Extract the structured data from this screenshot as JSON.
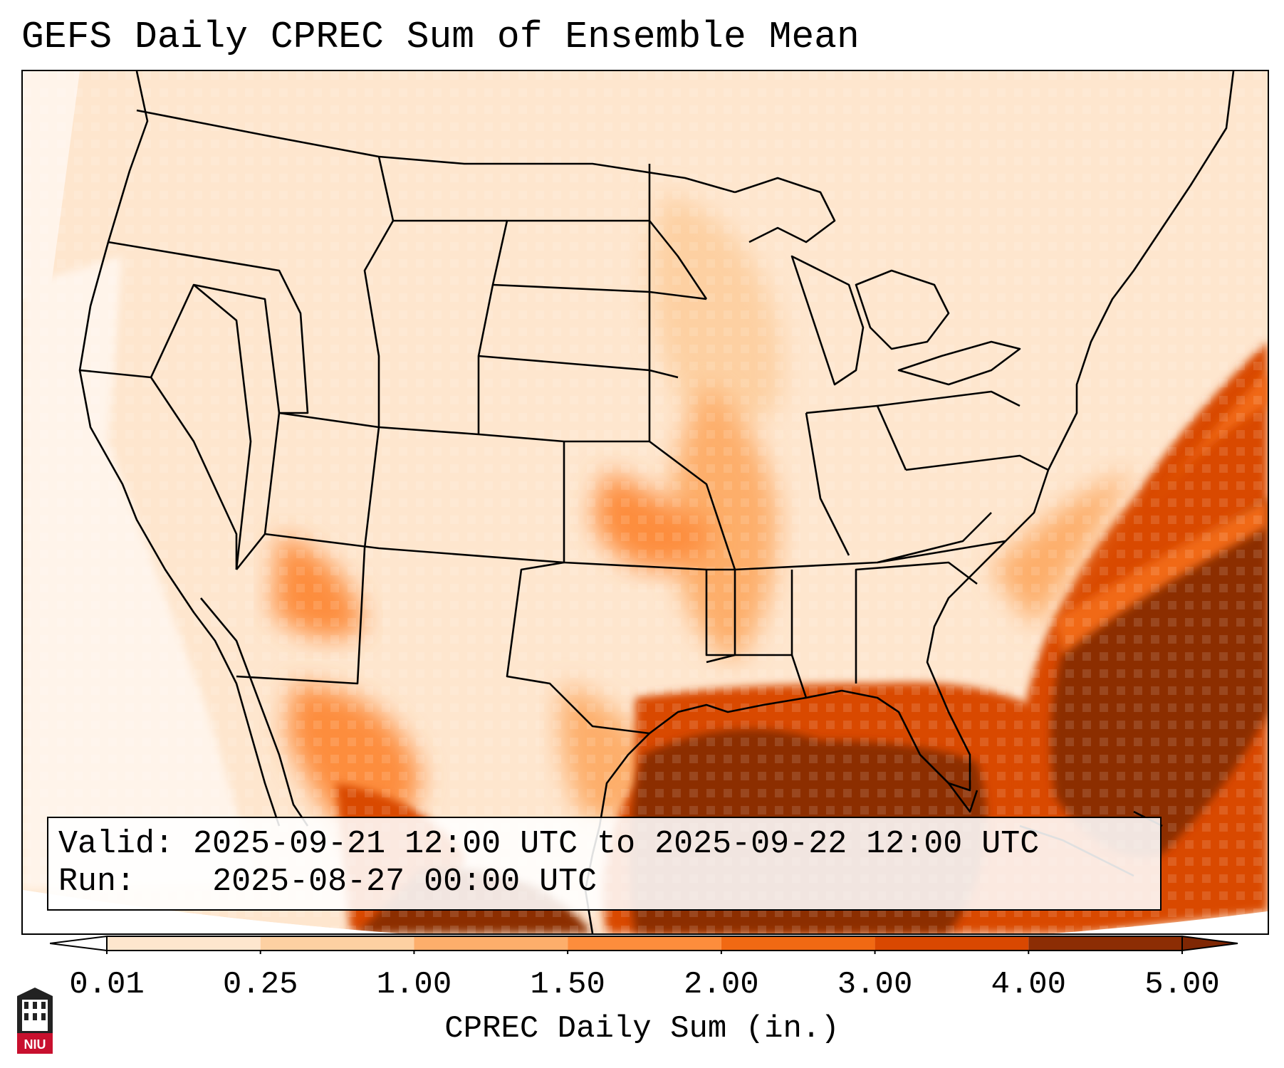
{
  "title": "GEFS Daily CPREC Sum of Ensemble Mean",
  "info": {
    "valid_label": "Valid:",
    "valid_value": "2025-09-21 12:00 UTC to 2025-09-22 12:00 UTC",
    "run_label": "Run:",
    "run_value": "2025-08-27 00:00 UTC"
  },
  "colorbar": {
    "label": "CPREC Daily Sum (in.)",
    "ticks": [
      "0.01",
      "0.25",
      "1.00",
      "1.50",
      "2.00",
      "3.00",
      "4.00",
      "5.00"
    ],
    "colors": [
      "#fee6ce",
      "#fdd0a2",
      "#fdae6b",
      "#fd8d3c",
      "#f16913",
      "#d94801",
      "#8c2d04"
    ],
    "under_color": "#ffffff",
    "over_color": "#7f2704"
  },
  "logo": {
    "text": "NIU",
    "name": "Northern Illinois University"
  }
}
